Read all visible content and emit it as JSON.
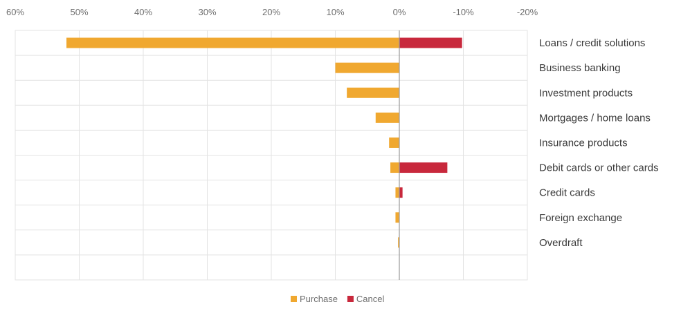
{
  "chart_data": {
    "type": "bar",
    "orientation": "horizontal",
    "x_axis": {
      "ticks": [
        60,
        50,
        40,
        30,
        20,
        10,
        0,
        -10,
        -20
      ],
      "tick_labels": [
        "60%",
        "50%",
        "40%",
        "30%",
        "20%",
        "10%",
        "0%",
        "-10%",
        "-20%"
      ],
      "lim": [
        60,
        -20
      ],
      "reversed": true,
      "position": "top"
    },
    "categories": [
      "Loans / credit solutions",
      "Business banking",
      "Investment products",
      "Mortgages / home loans",
      "Insurance products",
      "Debit cards or other cards",
      "Credit cards",
      "Foreign exchange",
      "Overdraft",
      ""
    ],
    "series": [
      {
        "name": "Purchase",
        "color": "#f0a830",
        "values": [
          52,
          10,
          8.2,
          3.7,
          1.6,
          1.4,
          0.6,
          0.6,
          0.2,
          0
        ]
      },
      {
        "name": "Cancel",
        "color": "#c8283c",
        "values": [
          -9.8,
          0,
          0,
          0,
          0,
          -7.5,
          -0.5,
          0,
          0,
          0
        ]
      }
    ],
    "grid": true,
    "legend_position": "bottom-center"
  }
}
